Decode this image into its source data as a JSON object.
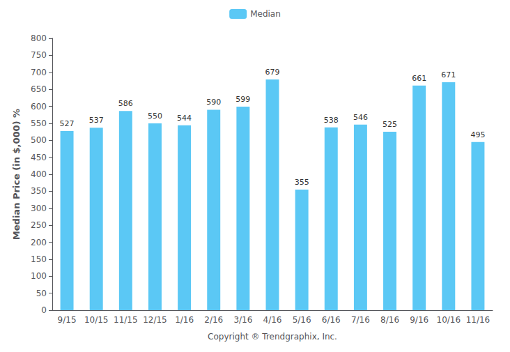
{
  "chart_data": {
    "type": "bar",
    "categories": [
      "9/15",
      "10/15",
      "11/15",
      "12/15",
      "1/16",
      "2/16",
      "3/16",
      "4/16",
      "5/16",
      "6/16",
      "7/16",
      "8/16",
      "9/16",
      "10/16",
      "11/16"
    ],
    "series": [
      {
        "name": "Median",
        "color": "#5BC8F5",
        "values": [
          527,
          537,
          586,
          550,
          544,
          590,
          599,
          679,
          355,
          538,
          546,
          525,
          661,
          671,
          495
        ]
      }
    ],
    "xlabel": "Copyright ® Trendgraphix, Inc.",
    "ylabel": "Median Price (in $,000) %",
    "ylim": [
      0,
      800
    ],
    "yticks": [
      0,
      50,
      100,
      150,
      200,
      250,
      300,
      350,
      400,
      450,
      500,
      550,
      600,
      650,
      700,
      750,
      800
    ],
    "grid": false,
    "legend": "top",
    "data_labels": true
  }
}
